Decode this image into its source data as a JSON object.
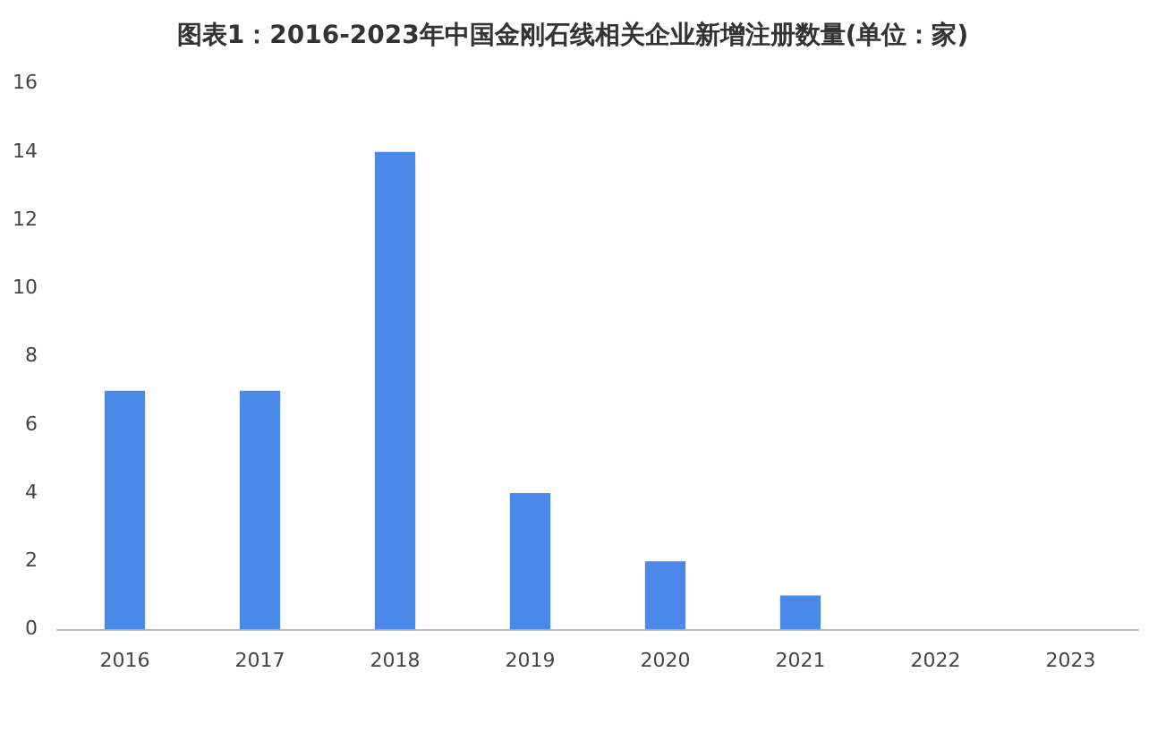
{
  "chart_data": {
    "type": "bar",
    "title": "图表1：2016-2023年中国金刚石线相关企业新增注册数量(单位：家)",
    "categories": [
      "2016",
      "2017",
      "2018",
      "2019",
      "2020",
      "2021",
      "2022",
      "2023"
    ],
    "values": [
      7,
      7,
      14,
      4,
      2,
      1,
      0,
      0
    ],
    "color": "#4a89e8",
    "ylim": [
      0,
      16
    ],
    "yticks": [
      0,
      2,
      4,
      6,
      8,
      10,
      12,
      14,
      16
    ],
    "grid": false,
    "legend": false
  }
}
